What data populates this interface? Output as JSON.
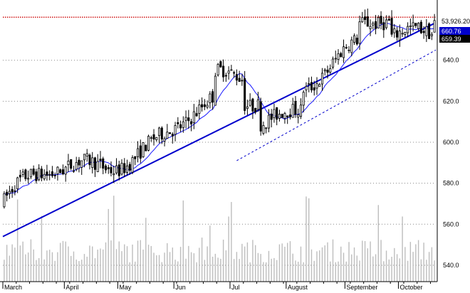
{
  "chart_data": {
    "type": "candlestick",
    "title": "",
    "xlabel": "",
    "ylabel": "",
    "ylim": [
      532,
      668
    ],
    "y_ticks": [
      540,
      560,
      580,
      600,
      620,
      640
    ],
    "y_tick_labels": [
      "540.0",
      "560.0",
      "580.0",
      "600.0",
      "620.0",
      "640.0"
    ],
    "months": [
      {
        "label": "March",
        "day": 0
      },
      {
        "label": "April",
        "day": 23
      },
      {
        "label": "May",
        "day": 43
      },
      {
        "label": "Jun",
        "day": 64
      },
      {
        "label": "Jul",
        "day": 85
      },
      {
        "label": "August",
        "day": 106
      },
      {
        "label": "September",
        "day": 128
      },
      {
        "label": "October",
        "day": 148
      }
    ],
    "days": 162,
    "trend_start_price": 572,
    "trend_end_price": 658,
    "trend_peak_price": 666,
    "close_target_price": 659.4,
    "resistance_price": 661,
    "volume_scale_max": 100,
    "labels": {
      "volume": "53,926.20",
      "resistance": "660.76",
      "last": "659.39"
    },
    "colors": {
      "candle": "#000000",
      "ma": "#1a1aff",
      "trend": "#0000cc",
      "resistance": "#cc0000",
      "grid": "#888888",
      "volume": "#bdbdbd",
      "last_box": "#000000",
      "last_text": "#ffffff",
      "res_box": "#0000cc"
    },
    "grid": true,
    "moving_average": true
  }
}
